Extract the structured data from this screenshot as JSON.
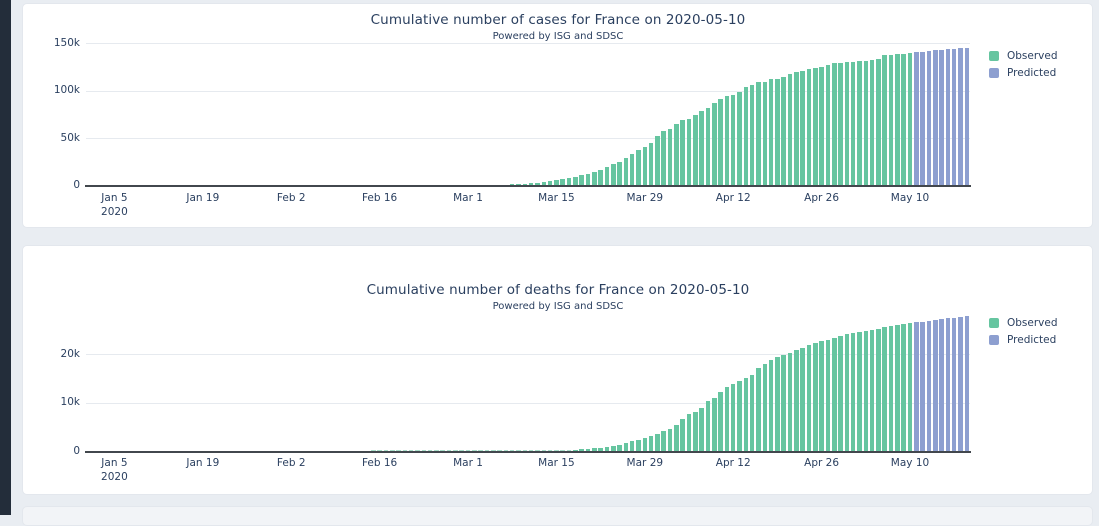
{
  "page": {
    "background_color": "#e9edf2",
    "card_color": "#ffffff",
    "window_edge_color": "#232d3a"
  },
  "chart_data": [
    {
      "type": "bar",
      "title": "Cumulative number of cases for France on 2020-05-10",
      "subtitle": "Powered by ISG and SDSC",
      "x_start": "2020-01-01",
      "x_unit": "day",
      "ylim": [
        0,
        150000
      ],
      "grid": true,
      "legend_position": "right-top",
      "yticks": [
        {
          "label": "0",
          "value": 0
        },
        {
          "label": "50k",
          "value": 50000
        },
        {
          "label": "100k",
          "value": 100000
        },
        {
          "label": "150k",
          "value": 150000
        }
      ],
      "xticks": [
        {
          "label": "Jan 5",
          "sublabel": "2020",
          "day": 4
        },
        {
          "label": "Jan 19",
          "day": 18
        },
        {
          "label": "Feb 2",
          "day": 32
        },
        {
          "label": "Feb 16",
          "day": 46
        },
        {
          "label": "Mar 1",
          "day": 60
        },
        {
          "label": "Mar 15",
          "day": 74
        },
        {
          "label": "Mar 29",
          "day": 88
        },
        {
          "label": "Apr 12",
          "day": 102
        },
        {
          "label": "Apr 26",
          "day": 116
        },
        {
          "label": "May 10",
          "day": 130
        }
      ],
      "series": [
        {
          "name": "Observed",
          "color": "#66c5a0",
          "values": [
            0,
            0,
            0,
            0,
            0,
            0,
            0,
            0,
            0,
            0,
            0,
            0,
            0,
            0,
            0,
            0,
            0,
            0,
            0,
            0,
            0,
            0,
            0,
            2,
            3,
            3,
            3,
            4,
            5,
            5,
            5,
            6,
            6,
            6,
            6,
            6,
            6,
            6,
            11,
            11,
            11,
            11,
            11,
            11,
            11,
            12,
            12,
            12,
            12,
            12,
            12,
            12,
            12,
            12,
            12,
            13,
            18,
            38,
            57,
            100,
            130,
            191,
            212,
            285,
            423,
            613,
            949,
            1126,
            1412,
            1784,
            2281,
            2876,
            3661,
            4499,
            5423,
            6633,
            7730,
            9134,
            10995,
            12612,
            14459,
            16018,
            19856,
            22304,
            25233,
            29155,
            32964,
            37575,
            40174,
            44550,
            52128,
            56989,
            59105,
            64338,
            68605,
            70478,
            74390,
            78167,
            82048,
            86334,
            90676,
            93790,
            95403,
            98076,
            103573,
            106206,
            108847,
            109252,
            111821,
            112606,
            114657,
            117324,
            119151,
            120804,
            122577,
            124114,
            124575,
            127066,
            128442,
            128959,
            129581,
            130185,
            130979,
            131287,
            131863,
            132967,
            137150,
            137779,
            138421,
            138854,
            139519
          ]
        },
        {
          "name": "Predicted",
          "color": "#8d9fd0",
          "values": [
            140227,
            140906,
            141556,
            142179,
            142775,
            143346,
            143893,
            144416,
            144917
          ]
        }
      ]
    },
    {
      "type": "bar",
      "title": "Cumulative number of deaths for France on 2020-05-10",
      "subtitle": "Powered by ISG and SDSC",
      "x_start": "2020-01-01",
      "x_unit": "day",
      "ylim": [
        0,
        30000
      ],
      "grid": true,
      "legend_position": "right-top",
      "yticks": [
        {
          "label": "0",
          "value": 0
        },
        {
          "label": "10k",
          "value": 10000
        },
        {
          "label": "20k",
          "value": 20000
        }
      ],
      "xticks": [
        {
          "label": "Jan 5",
          "sublabel": "2020",
          "day": 4
        },
        {
          "label": "Jan 19",
          "day": 18
        },
        {
          "label": "Feb 2",
          "day": 32
        },
        {
          "label": "Feb 16",
          "day": 46
        },
        {
          "label": "Mar 1",
          "day": 60
        },
        {
          "label": "Mar 15",
          "day": 74
        },
        {
          "label": "Mar 29",
          "day": 88
        },
        {
          "label": "Apr 12",
          "day": 102
        },
        {
          "label": "Apr 26",
          "day": 116
        },
        {
          "label": "May 10",
          "day": 130
        }
      ],
      "series": [
        {
          "name": "Observed",
          "color": "#66c5a0",
          "values": [
            0,
            0,
            0,
            0,
            0,
            0,
            0,
            0,
            0,
            0,
            0,
            0,
            0,
            0,
            0,
            0,
            0,
            0,
            0,
            0,
            0,
            0,
            0,
            0,
            0,
            0,
            0,
            0,
            0,
            0,
            0,
            0,
            0,
            0,
            0,
            0,
            0,
            0,
            0,
            0,
            0,
            0,
            0,
            0,
            0,
            1,
            1,
            1,
            1,
            1,
            1,
            1,
            1,
            1,
            1,
            1,
            2,
            2,
            2,
            2,
            2,
            3,
            4,
            4,
            7,
            9,
            11,
            19,
            19,
            33,
            48,
            48,
            79,
            91,
            127,
            148,
            148,
            264,
            372,
            450,
            562,
            674,
            860,
            1100,
            1331,
            1696,
            1995,
            2314,
            2606,
            3024,
            3523,
            4032,
            4503,
            5387,
            6507,
            7560,
            8078,
            8911,
            10328,
            10869,
            12210,
            13197,
            13832,
            14393,
            14967,
            15729,
            17167,
            17920,
            18681,
            19323,
            19718,
            20265,
            20796,
            21340,
            21856,
            22245,
            22614,
            22856,
            23293,
            23660,
            24087,
            24376,
            24594,
            24760,
            24895,
            25201,
            25531,
            25809,
            25987,
            26230,
            26310
          ]
        },
        {
          "name": "Predicted",
          "color": "#8d9fd0",
          "values": [
            26501,
            26686,
            26864,
            27036,
            27202,
            27361,
            27514,
            27661,
            27802
          ]
        }
      ]
    }
  ]
}
